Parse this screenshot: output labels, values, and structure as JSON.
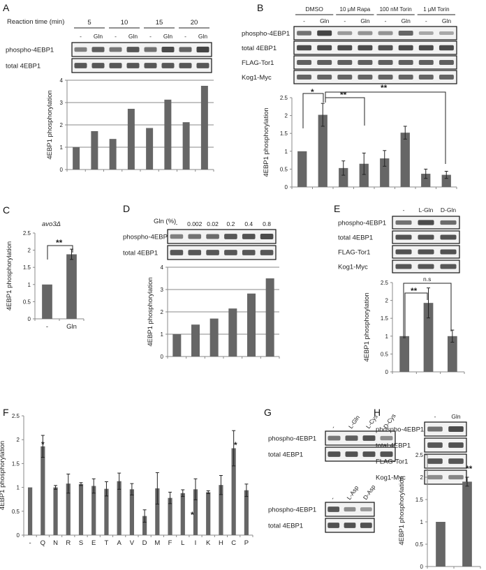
{
  "panels": {
    "A": {
      "label": "A",
      "reaction_title": "Reaction time (min)",
      "times": [
        "5",
        "10",
        "15",
        "20"
      ],
      "lanes": [
        "-",
        "Gln",
        "-",
        "Gln",
        "-",
        "Gln",
        "-",
        "Gln"
      ],
      "blots": [
        "phospho-4EBP1",
        "total 4EBP1"
      ],
      "band_intensity": [
        [
          0.5,
          0.75,
          0.55,
          0.8,
          0.6,
          0.9,
          0.7,
          0.95
        ],
        [
          0.8,
          0.8,
          0.8,
          0.8,
          0.8,
          0.8,
          0.8,
          0.8
        ]
      ]
    },
    "B": {
      "label": "B",
      "treatments": [
        "DMSO",
        "10 μM Rapa",
        "100 nM Torin",
        "1 μM Torin"
      ],
      "lanes": [
        "-",
        "Gln",
        "-",
        "Gln",
        "-",
        "Gln",
        "-",
        "Gln"
      ],
      "blots": [
        "phospho-4EBP1",
        "total 4EBP1",
        "FLAG-Tor1",
        "Kog1-Myc"
      ],
      "band_intensity": [
        [
          0.6,
          0.95,
          0.3,
          0.35,
          0.35,
          0.7,
          0.2,
          0.2
        ],
        [
          0.9,
          0.9,
          0.9,
          0.9,
          0.85,
          0.9,
          0.9,
          0.9
        ],
        [
          0.75,
          0.75,
          0.75,
          0.75,
          0.75,
          0.75,
          0.75,
          0.75
        ],
        [
          0.7,
          0.7,
          0.7,
          0.7,
          0.7,
          0.7,
          0.7,
          0.7
        ]
      ],
      "significance": [
        "*",
        "**",
        "**"
      ]
    },
    "C": {
      "label": "C",
      "strain": "avo3Δ",
      "significance": [
        "**"
      ]
    },
    "D": {
      "label": "D",
      "gln_title": "Gln (%)",
      "lanes": [
        "-",
        "0.002",
        "0.02",
        "0.2",
        "0.4",
        "0.8"
      ],
      "blots": [
        "phospho-4EBP1",
        "total 4EBP1"
      ],
      "band_intensity": [
        [
          0.5,
          0.6,
          0.65,
          0.8,
          0.85,
          0.9
        ],
        [
          0.8,
          0.8,
          0.8,
          0.8,
          0.8,
          0.8
        ]
      ]
    },
    "E": {
      "label": "E",
      "lanes": [
        "-",
        "L-Gln",
        "D-Gln"
      ],
      "blots": [
        "phospho-4EBP1",
        "total 4EBP1",
        "FLAG-Tor1",
        "Kog1-Myc"
      ],
      "band_intensity": [
        [
          0.6,
          0.9,
          0.65
        ],
        [
          0.85,
          0.85,
          0.85
        ],
        [
          0.85,
          0.85,
          0.85
        ],
        [
          0.8,
          0.8,
          0.8
        ]
      ],
      "significance": [
        "n.s",
        "**"
      ]
    },
    "F": {
      "label": "F",
      "significance": [
        "*",
        "*",
        "*"
      ]
    },
    "G": {
      "label": "G",
      "lanes_top": [
        "-",
        "L-Gln",
        "L-Cys",
        "D-Cys"
      ],
      "lanes_bottom": [
        "-",
        "L-Asp",
        "D-Asp"
      ],
      "blots_top": [
        "phospho-4EBP1",
        "total 4EBP1"
      ],
      "blots_bottom": [
        "phospho-4EBP1",
        "total 4EBP1"
      ],
      "band_intensity_top": [
        [
          0.55,
          0.75,
          0.85,
          0.4
        ],
        [
          0.85,
          0.85,
          0.85,
          0.85
        ]
      ],
      "band_intensity_bottom": [
        [
          0.8,
          0.4,
          0.3
        ],
        [
          0.85,
          0.85,
          0.85
        ]
      ]
    },
    "H": {
      "label": "H",
      "lanes": [
        "-",
        "Gln"
      ],
      "blots": [
        "phospho-4EBP1",
        "total 4EBP1",
        "FLAG-Tor1",
        "Kog1-Myc"
      ],
      "band_intensity": [
        [
          0.6,
          0.9
        ],
        [
          0.8,
          0.85
        ],
        [
          0.8,
          0.8
        ],
        [
          0.4,
          0.45
        ]
      ],
      "significance": [
        "**"
      ]
    }
  },
  "chart_data": [
    {
      "id": "A",
      "type": "bar",
      "categories": [
        "-",
        "Gln",
        "-",
        "Gln",
        "-",
        "Gln",
        "-",
        "Gln"
      ],
      "values": [
        1.0,
        1.72,
        1.37,
        2.72,
        1.86,
        3.13,
        2.12,
        3.75
      ],
      "ylabel": "4EBP1 phosphorylation",
      "ylim": [
        0,
        4
      ],
      "yticks": [
        0,
        1,
        2,
        3,
        4
      ],
      "grid": true,
      "show_xticklabels": false
    },
    {
      "id": "B",
      "type": "bar",
      "categories": [
        "-",
        "Gln",
        "-",
        "Gln",
        "-",
        "Gln",
        "-",
        "Gln"
      ],
      "values": [
        1.0,
        2.02,
        0.53,
        0.65,
        0.8,
        1.52,
        0.37,
        0.34
      ],
      "errors": [
        0,
        0.32,
        0.2,
        0.3,
        0.22,
        0.18,
        0.13,
        0.1
      ],
      "ylabel": "4EBP1 phosphorylation",
      "ylim": [
        0,
        2.5
      ],
      "yticks": [
        "0",
        "0.5",
        "1",
        "1.5",
        "2",
        "2.5"
      ],
      "grid": false,
      "show_xticklabels": false
    },
    {
      "id": "C",
      "type": "bar",
      "categories": [
        "-",
        "Gln"
      ],
      "values": [
        1.0,
        1.88
      ],
      "errors": [
        0,
        0.15
      ],
      "ylabel": "4EBP1 phosphorylation",
      "ylim": [
        0,
        2.5
      ],
      "yticks": [
        "0",
        "0.5",
        "1",
        "1.5",
        "2",
        "2.5"
      ],
      "grid": false,
      "show_xticklabels": true
    },
    {
      "id": "D",
      "type": "bar",
      "categories": [
        "-",
        "0.002",
        "0.02",
        "0.2",
        "0.4",
        "0.8"
      ],
      "values": [
        1.0,
        1.43,
        1.7,
        2.15,
        2.82,
        3.5
      ],
      "ylabel": "4EBP1 phosphorylation",
      "ylim": [
        0,
        4
      ],
      "yticks": [
        0,
        1,
        2,
        3,
        4
      ],
      "grid": true,
      "show_xticklabels": false
    },
    {
      "id": "E",
      "type": "bar",
      "categories": [
        "-",
        "L-Gln",
        "D-Gln"
      ],
      "values": [
        1.0,
        1.93,
        1.0
      ],
      "errors": [
        0,
        0.42,
        0.17
      ],
      "ylabel": "4EBP1 phosphorylation",
      "ylim": [
        0,
        2.5
      ],
      "yticks": [
        "0",
        "0.5",
        "1",
        "1.5",
        "2",
        "2.5"
      ],
      "grid": false,
      "show_xticklabels": false
    },
    {
      "id": "F",
      "type": "bar",
      "categories": [
        "-",
        "Q",
        "N",
        "R",
        "S",
        "E",
        "T",
        "A",
        "V",
        "D",
        "M",
        "F",
        "L",
        "I",
        "K",
        "H",
        "C",
        "P"
      ],
      "values": [
        1.0,
        1.86,
        1.0,
        1.08,
        1.07,
        1.03,
        0.97,
        1.13,
        0.96,
        0.4,
        0.98,
        0.78,
        0.88,
        0.96,
        0.9,
        1.05,
        1.82,
        0.94
      ],
      "errors": [
        0,
        0.23,
        0.04,
        0.2,
        0.03,
        0.15,
        0.15,
        0.17,
        0.12,
        0.13,
        0.33,
        0.12,
        0.07,
        0.22,
        0.03,
        0.2,
        0.37,
        0.13
      ],
      "ylabel": "4EBP1 phosphorylation",
      "ylim": [
        0,
        2.5
      ],
      "yticks": [
        "0",
        "0.5",
        "1",
        "1.5",
        "2",
        "2.5"
      ],
      "grid": false,
      "show_xticklabels": true
    },
    {
      "id": "H",
      "type": "bar",
      "categories": [
        "-",
        "Gln"
      ],
      "values": [
        1.0,
        1.9
      ],
      "errors": [
        0,
        0.1
      ],
      "ylabel": "4EBP1 phosphorylation",
      "ylim": [
        0,
        2.5
      ],
      "yticks": [
        "0",
        "0.5",
        "1",
        "1.5",
        "2",
        "2.5"
      ],
      "grid": false,
      "show_xticklabels": false
    }
  ]
}
